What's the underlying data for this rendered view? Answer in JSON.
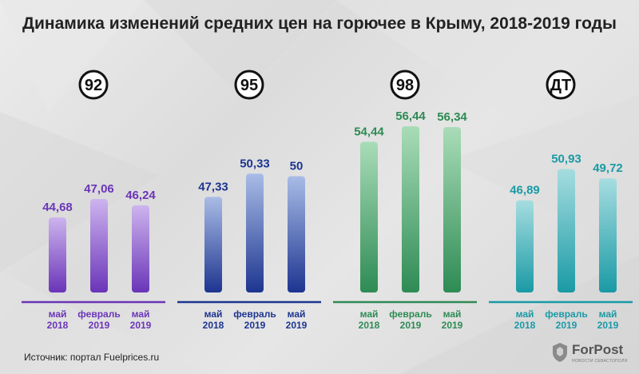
{
  "title": "Динамика изменений средних цен на горючее в Крыму, 2018-2019 годы",
  "source": "Источник: портал Fuelprices.ru",
  "logo": {
    "name": "ForPost",
    "tagline": "НОВОСТИ СЕВАСТОПОЛЯ"
  },
  "chart_data": {
    "type": "bar",
    "title": "Динамика изменений средних цен на горючее в Крыму, 2018-2019 годы",
    "categories": [
      [
        "май",
        "2018"
      ],
      [
        "февраль",
        "2019"
      ],
      [
        "май",
        "2019"
      ]
    ],
    "ylim": [
      0,
      60
    ],
    "grid": false,
    "groups": [
      {
        "label": "92",
        "color": "#6a35b8",
        "light": "#cdb4ee",
        "values": [
          44.68,
          47.06,
          46.24
        ],
        "value_labels": [
          "44,68",
          "47,06",
          "46,24"
        ]
      },
      {
        "label": "95",
        "color": "#1d3590",
        "light": "#a9bce6",
        "values": [
          47.33,
          50.33,
          50
        ],
        "value_labels": [
          "47,33",
          "50,33",
          "50"
        ]
      },
      {
        "label": "98",
        "color": "#2e8b54",
        "light": "#a9dcb8",
        "values": [
          54.44,
          56.44,
          56.34
        ],
        "value_labels": [
          "54,44",
          "56,44",
          "56,34"
        ]
      },
      {
        "label": "ДТ",
        "color": "#1a9aa5",
        "light": "#a6dde0",
        "values": [
          46.89,
          50.93,
          49.72
        ],
        "value_labels": [
          "46,89",
          "50,93",
          "49,72"
        ]
      }
    ]
  }
}
